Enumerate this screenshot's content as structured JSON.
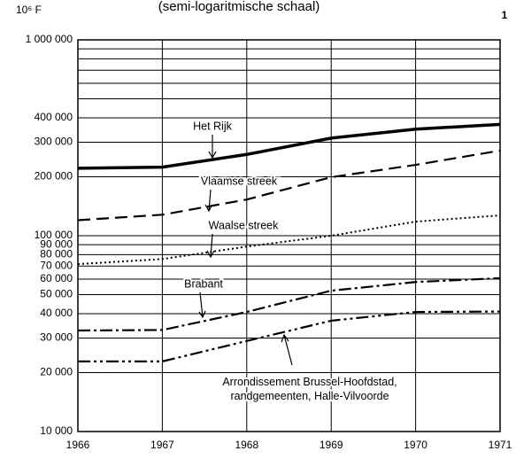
{
  "chart_data": {
    "type": "line",
    "title": "(semi-logaritmische schaal)",
    "unit_label": "10⁶ F",
    "page_number": "1",
    "x": [
      1966,
      1967,
      1968,
      1969,
      1970,
      1971
    ],
    "xlim": [
      1966,
      1971
    ],
    "xticks": [
      1966,
      1967,
      1968,
      1969,
      1970,
      1971
    ],
    "ylog": true,
    "ylim": [
      10000,
      1000000
    ],
    "yticks": [
      {
        "value": 10000,
        "label": "10 000"
      },
      {
        "value": 20000,
        "label": "20 000"
      },
      {
        "value": 30000,
        "label": "30 000"
      },
      {
        "value": 40000,
        "label": "40 000"
      },
      {
        "value": 50000,
        "label": "50 000"
      },
      {
        "value": 60000,
        "label": "60 000"
      },
      {
        "value": 70000,
        "label": "70 000"
      },
      {
        "value": 80000,
        "label": "80 000"
      },
      {
        "value": 90000,
        "label": "90 000"
      },
      {
        "value": 100000,
        "label": "100 000"
      },
      {
        "value": 200000,
        "label": "200 000"
      },
      {
        "value": 300000,
        "label": "300 000"
      },
      {
        "value": 400000,
        "label": "400 000"
      },
      {
        "value": 1000000,
        "label": "1 000 000"
      }
    ],
    "yminor": [
      500000,
      600000,
      700000,
      800000,
      900000
    ],
    "grid": true,
    "series": [
      {
        "name": "Het Rijk",
        "color": "#000000",
        "style": "solid",
        "values": [
          221000,
          224000,
          260000,
          315000,
          350000,
          370000
        ]
      },
      {
        "name": "Vlaamse streek",
        "color": "#000000",
        "style": "dashed",
        "values": [
          120000,
          128000,
          153000,
          199000,
          230000,
          272000
        ]
      },
      {
        "name": "Waalse streek",
        "color": "#000000",
        "style": "dotted",
        "values": [
          71600,
          76000,
          88000,
          100000,
          118000,
          127000
        ]
      },
      {
        "name": "Brabant",
        "color": "#000000",
        "style": "dashdot",
        "values": [
          32800,
          33000,
          40800,
          52400,
          58000,
          60700
        ]
      },
      {
        "name": "Arrondissement Brussel-Hoofdstad,\nrandgemeenten, Halle-Vilvoorde",
        "color": "#000000",
        "style": "dashdotdot",
        "values": [
          22800,
          22800,
          29000,
          36800,
          40800,
          41000
        ]
      }
    ]
  }
}
